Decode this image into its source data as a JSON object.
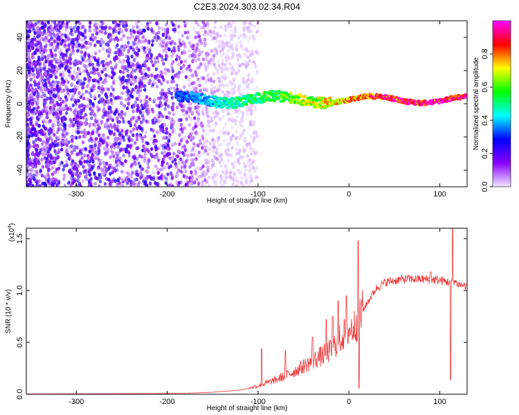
{
  "figure": {
    "title": "C2E3.2024.303.02.34.R04"
  },
  "chart_data": [
    {
      "type": "heatmap",
      "xlabel": "Height of straight line (km)",
      "ylabel": "Frequency (Hz)",
      "xlim": [
        -355,
        130
      ],
      "ylim": [
        -50,
        50
      ],
      "x_ticks": [
        -300,
        -200,
        -100,
        0,
        100
      ],
      "y_ticks": [
        -40,
        -20,
        0,
        20,
        40
      ],
      "colorbar": {
        "label": "Normalized spectral amplitude",
        "range": [
          0,
          1
        ],
        "ticks": [
          0.0,
          0.2,
          0.4,
          0.6,
          0.8
        ],
        "colors": [
          "#f2e8ff",
          "#8800ff",
          "#0000ff",
          "#00ffff",
          "#00ff00",
          "#ffff00",
          "#ff0000",
          "#ff00ff"
        ]
      },
      "features": {
        "noise_region_x": [
          -355,
          -140
        ],
        "noise_typical_amplitude": 0.15,
        "signal_band_x": [
          -190,
          130
        ],
        "signal_band_frequency_hz": [
          0,
          5
        ],
        "signal_amplitude_start": 0.35,
        "signal_amplitude_end": 1.0
      }
    },
    {
      "type": "line",
      "xlabel": "Height of straight line (km)",
      "ylabel": "SNR (10 * v/v)",
      "multiplier_label": "(x10",
      "multiplier_exponent": "4",
      "xlim": [
        -355,
        130
      ],
      "ylim": [
        0,
        1.6
      ],
      "x_ticks": [
        -300,
        -200,
        -100,
        0,
        100
      ],
      "y_ticks": [
        0.0,
        0.5,
        1.0,
        1.5
      ],
      "series": [
        {
          "color": "#ee3333",
          "envelope": {
            "x": [
              -355,
              -250,
              -180,
              -150,
              -120,
              -100,
              -80,
              -60,
              -40,
              -20,
              -15,
              -5,
              0,
              5,
              10,
              20,
              30,
              40,
              60,
              80,
              100,
              110,
              115,
              120,
              130
            ],
            "y": [
              0.003,
              0.005,
              0.01,
              0.02,
              0.04,
              0.08,
              0.14,
              0.22,
              0.32,
              0.42,
              0.48,
              0.58,
              0.62,
              0.64,
              0.72,
              0.88,
              1.02,
              1.08,
              1.11,
              1.11,
              1.1,
              1.08,
              1.1,
              1.06,
              1.04
            ]
          },
          "spikes": [
            {
              "x": -96,
              "y": 0.44
            },
            {
              "x": -70,
              "y": 0.42
            },
            {
              "x": -40,
              "y": 0.55
            },
            {
              "x": -25,
              "y": 0.72
            },
            {
              "x": -18,
              "y": 0.75
            },
            {
              "x": -12,
              "y": 0.9
            },
            {
              "x": -3,
              "y": 0.95
            },
            {
              "x": 10,
              "y": 1.48
            },
            {
              "x": 11,
              "y": 0.06
            },
            {
              "x": 90,
              "y": 1.18
            },
            {
              "x": 112,
              "y": 0.14
            },
            {
              "x": 114,
              "y": 1.6
            }
          ]
        }
      ]
    }
  ]
}
